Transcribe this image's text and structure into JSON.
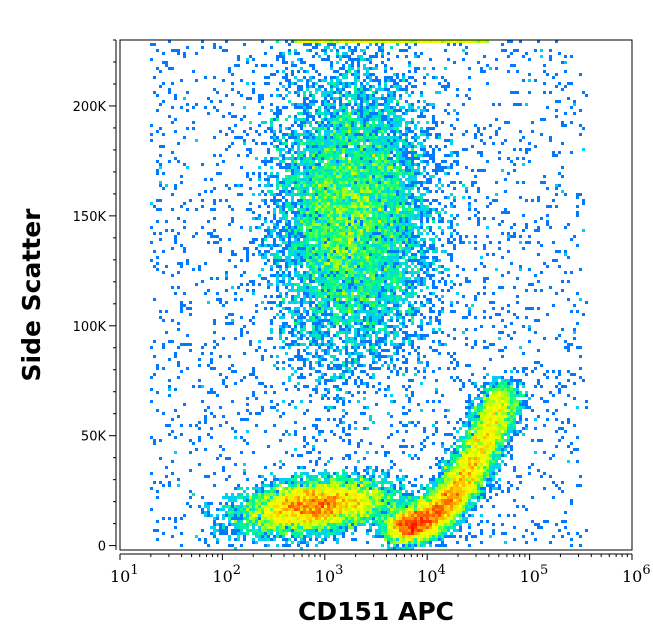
{
  "chart_data": {
    "type": "heatmap",
    "subtype": "flow-cytometry density dot plot",
    "xlabel": "CD151 APC",
    "ylabel": "Side Scatter",
    "x_scale": "log",
    "xlim": [
      10,
      1000000
    ],
    "x_ticks": [
      {
        "value": 10,
        "base": "10",
        "exp": "1"
      },
      {
        "value": 100,
        "base": "10",
        "exp": "2"
      },
      {
        "value": 1000,
        "base": "10",
        "exp": "3"
      },
      {
        "value": 10000,
        "base": "10",
        "exp": "4"
      },
      {
        "value": 100000,
        "base": "10",
        "exp": "5"
      },
      {
        "value": 1000000,
        "base": "10",
        "exp": "6"
      }
    ],
    "y_scale": "linear",
    "ylim": [
      -2000,
      230000
    ],
    "y_ticks": [
      {
        "value": 0,
        "label": "0"
      },
      {
        "value": 50000,
        "label": "50K"
      },
      {
        "value": 100000,
        "label": "100K"
      },
      {
        "value": 150000,
        "label": "150K"
      },
      {
        "value": 200000,
        "label": "200K"
      }
    ],
    "colormap": [
      "#0000ff",
      "#00c8ff",
      "#00ff80",
      "#c8ff00",
      "#ffff00",
      "#ff8000",
      "#ff0000"
    ],
    "populations": [
      {
        "x_center": 800,
        "y_center": 18000,
        "weight": 0.26
      },
      {
        "x_center": 15000,
        "y_center": 20000,
        "weight": 0.34
      },
      {
        "x_center": 1200,
        "y_center": 150000,
        "weight": 0.32
      },
      {
        "x_center": 3000,
        "y_center": 230000,
        "weight": 0.02
      }
    ],
    "grid": false
  }
}
